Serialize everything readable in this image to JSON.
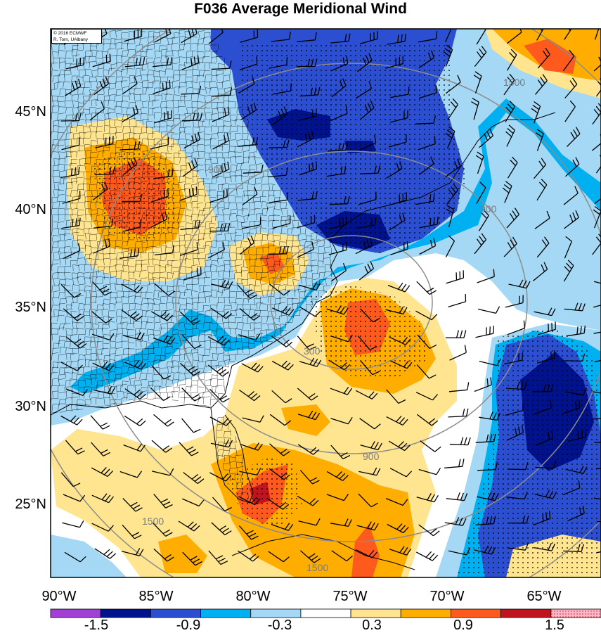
{
  "title": "F036 Average Meridional Wind",
  "credit": {
    "line1": "© 2016 ECMWF",
    "line2": "R. Torn, UAlbany"
  },
  "map": {
    "lat_labels": [
      "45°N",
      "40°N",
      "35°N",
      "30°N",
      "25°N"
    ],
    "lon_labels": [
      "90°W",
      "85°W",
      "80°W",
      "75°W",
      "70°W",
      "65°W"
    ],
    "lat_range": [
      21.0,
      48.5
    ],
    "lon_range": [
      -90.0,
      -63.0
    ]
  },
  "range_ring_labels": [
    "300",
    "900",
    "1500"
  ],
  "colorbar": {
    "labels": [
      "-1.5",
      "-0.9",
      "-0.3",
      "0.3",
      "0.9",
      "1.5"
    ],
    "colors": [
      "#a23fd6",
      "#00128c",
      "#2b4fd0",
      "#00b0f0",
      "#a4d8f4",
      "#ffffff",
      "#ffe58f",
      "#ffae00",
      "#ff5a1e",
      "#c0141e",
      "#ffb6c8"
    ]
  },
  "colors": {
    "border": "#000000",
    "range_ring": "#8c8c8c"
  }
}
